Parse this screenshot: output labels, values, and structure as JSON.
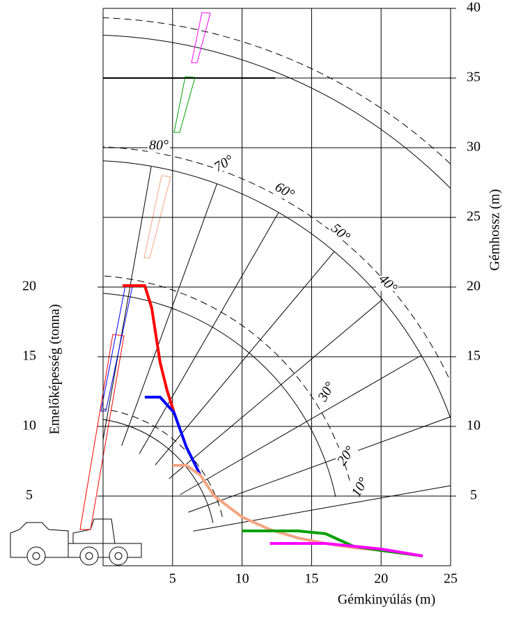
{
  "chart_data": {
    "type": "line",
    "x_label": "Gémkinyúlás (m)",
    "y_label": "Emelőképesség (tonna)",
    "y2_label": "Gémhossz (m)",
    "xlim": [
      0,
      25
    ],
    "xticks": [
      5,
      10,
      15,
      20,
      25
    ],
    "ylim": [
      0,
      40
    ],
    "yticks": [
      5,
      10,
      15,
      20
    ],
    "y2lim": [
      0,
      40
    ],
    "y2ticks": [
      5,
      10,
      15,
      20,
      25,
      30,
      35,
      40
    ],
    "grid": true,
    "angle_labels": [
      "80°",
      "70°",
      "60°",
      "50°",
      "40°",
      "30°",
      "20°",
      "10°"
    ],
    "series": [
      {
        "color": "#ff0000",
        "x": [
          1.4,
          3,
          3.5,
          4.1,
          4.6,
          5.1
        ],
        "values": [
          20.1,
          20.1,
          18.5,
          14.6,
          12.6,
          11
        ]
      },
      {
        "color": "#0000ff",
        "x": [
          3,
          4.1,
          5.1,
          6,
          7
        ],
        "values": [
          12.1,
          12.1,
          11,
          8.5,
          6.5
        ]
      },
      {
        "color": "#f4a582",
        "x": [
          5,
          6,
          7,
          8,
          10,
          12,
          14,
          16,
          18,
          20,
          23
        ],
        "values": [
          7.2,
          7.2,
          6.5,
          5,
          3.5,
          2.6,
          2,
          1.6,
          1.3,
          1.1,
          0.7
        ]
      },
      {
        "color": "#00a000",
        "x": [
          10,
          14,
          16,
          18,
          20,
          23
        ],
        "values": [
          2.5,
          2.5,
          2.3,
          1.4,
          1.1,
          0.7
        ]
      },
      {
        "color": "#ff00ff",
        "x": [
          12,
          16,
          20,
          23
        ],
        "values": [
          1.6,
          1.6,
          1.2,
          0.7
        ]
      }
    ]
  }
}
